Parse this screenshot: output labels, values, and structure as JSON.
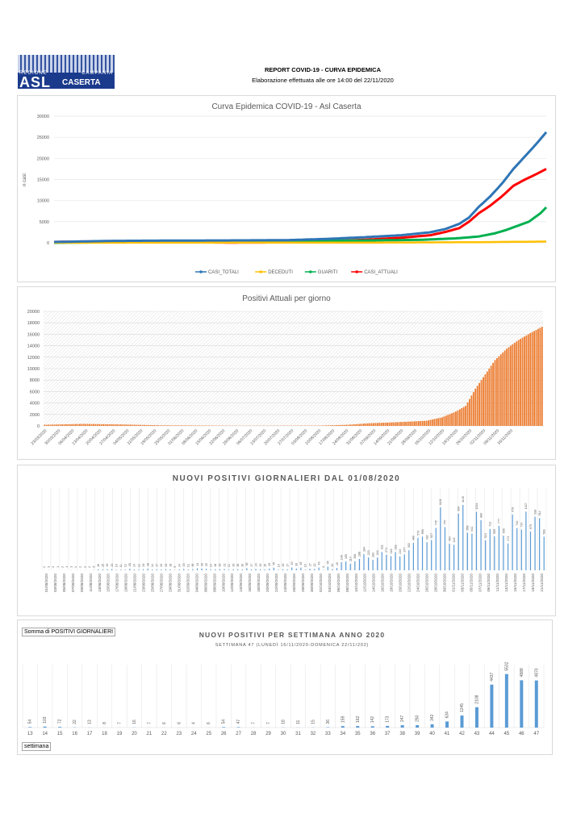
{
  "header": {
    "logo": {
      "region_left": "REGIONE",
      "region_right": "CAMPANIA",
      "asl": "ASL",
      "caserta": "CASERTA"
    },
    "title": "REPORT COVID-19 - CURVA EPIDEMICA",
    "subtitle": "Elaborazione effettuata alle ore 14:00 del 22/11/2020"
  },
  "chart_data": [
    {
      "type": "line",
      "title": "Curva Epidemica COVID-19 - Asl Caserta",
      "xlabel": "",
      "ylabel": "n casi",
      "ylim": [
        0,
        30000
      ],
      "yticks": [
        0,
        5000,
        10000,
        15000,
        20000,
        25000,
        30000
      ],
      "grid": true,
      "legend": "bottom",
      "x_range": [
        "23/03/2020",
        "22/11/2020"
      ],
      "series": [
        {
          "name": "CASI_TOTALI",
          "color": "#2e75b6",
          "points": [
            [
              0,
              200
            ],
            [
              30,
              450
            ],
            [
              60,
              520
            ],
            [
              90,
              560
            ],
            [
              120,
              620
            ],
            [
              140,
              900
            ],
            [
              160,
              1300
            ],
            [
              180,
              1800
            ],
            [
              195,
              2500
            ],
            [
              203,
              3300
            ],
            [
              210,
              4500
            ],
            [
              215,
              6000
            ],
            [
              220,
              8500
            ],
            [
              226,
              11000
            ],
            [
              232,
              14000
            ],
            [
              238,
              17500
            ],
            [
              244,
              20500
            ],
            [
              250,
              23500
            ],
            [
              255,
              26200
            ]
          ]
        },
        {
          "name": "DECEDUTI",
          "color": "#ffc000",
          "points": [
            [
              0,
              10
            ],
            [
              60,
              40
            ],
            [
              120,
              50
            ],
            [
              180,
              70
            ],
            [
              220,
              150
            ],
            [
              255,
              300
            ]
          ]
        },
        {
          "name": "GUARITI",
          "color": "#00b050",
          "points": [
            [
              0,
              0
            ],
            [
              60,
              300
            ],
            [
              120,
              450
            ],
            [
              160,
              550
            ],
            [
              190,
              700
            ],
            [
              210,
              1100
            ],
            [
              220,
              1500
            ],
            [
              228,
              2200
            ],
            [
              234,
              3000
            ],
            [
              240,
              4000
            ],
            [
              246,
              5000
            ],
            [
              252,
              7000
            ],
            [
              255,
              8400
            ]
          ]
        },
        {
          "name": "CASI_ATTUALI",
          "color": "#ff0000",
          "points": [
            [
              0,
              200
            ],
            [
              30,
              380
            ],
            [
              60,
              180
            ],
            [
              90,
              60
            ],
            [
              120,
              100
            ],
            [
              140,
              350
            ],
            [
              160,
              700
            ],
            [
              180,
              1200
            ],
            [
              195,
              1800
            ],
            [
              203,
              2600
            ],
            [
              210,
              3500
            ],
            [
              215,
              5000
            ],
            [
              220,
              7000
            ],
            [
              226,
              8800
            ],
            [
              232,
              11000
            ],
            [
              238,
              13500
            ],
            [
              244,
              15000
            ],
            [
              250,
              16300
            ],
            [
              255,
              17500
            ]
          ]
        }
      ]
    },
    {
      "type": "bar",
      "title": "Positivi Attuali per giorno",
      "ylim": [
        0,
        20000
      ],
      "yticks": [
        0,
        2000,
        4000,
        6000,
        8000,
        10000,
        12000,
        14000,
        16000,
        18000,
        20000
      ],
      "color": "#ed7d31",
      "grid": true,
      "tick_labels": [
        "23/03/2020",
        "30/03/2020",
        "06/04/2020",
        "13/04/2020",
        "20/04/2020",
        "27/04/2020",
        "04/05/2020",
        "11/05/2020",
        "18/05/2020",
        "25/05/2020",
        "01/06/2020",
        "08/06/2020",
        "15/06/2020",
        "22/06/2020",
        "29/06/2020",
        "06/07/2020",
        "13/07/2020",
        "20/07/2020",
        "27/07/2020",
        "03/08/2020",
        "10/08/2020",
        "17/08/2020",
        "24/08/2020",
        "31/08/2020",
        "07/09/2020",
        "14/09/2020",
        "21/09/2020",
        "28/09/2020",
        "05/10/2020",
        "12/10/2020",
        "19/10/2020",
        "26/10/2020",
        "02/11/2020",
        "09/11/2020",
        "16/11/2020"
      ],
      "curve": [
        [
          0,
          200
        ],
        [
          20,
          350
        ],
        [
          40,
          250
        ],
        [
          60,
          100
        ],
        [
          100,
          30
        ],
        [
          140,
          50
        ],
        [
          155,
          200
        ],
        [
          165,
          450
        ],
        [
          180,
          650
        ],
        [
          195,
          900
        ],
        [
          203,
          1500
        ],
        [
          210,
          2500
        ],
        [
          215,
          3500
        ],
        [
          220,
          6500
        ],
        [
          225,
          9000
        ],
        [
          230,
          11500
        ],
        [
          236,
          13500
        ],
        [
          242,
          15000
        ],
        [
          248,
          16200
        ],
        [
          255,
          17500
        ]
      ]
    },
    {
      "type": "bar",
      "title": "NUOVI POSITIVI GIORNALIERI DAL 01/08/2020",
      "color": "#5b9bd5",
      "grid": true,
      "categories": [
        "01/08/2020",
        "03/08/2020",
        "05/08/2020",
        "07/08/2020",
        "09/08/2020",
        "11/08/2020",
        "13/08/2020",
        "15/08/2020",
        "17/08/2020",
        "19/08/2020",
        "21/08/2020",
        "23/08/2020",
        "25/08/2020",
        "27/08/2020",
        "29/08/2020",
        "31/08/2020",
        "02/09/2020",
        "04/09/2020",
        "06/09/2020",
        "08/09/2020",
        "10/09/2020",
        "12/09/2020",
        "14/09/2020",
        "16/09/2020",
        "18/09/2020",
        "20/09/2020",
        "22/09/2020",
        "24/09/2020",
        "26/09/2020",
        "28/09/2020",
        "30/09/2020",
        "02/10/2020",
        "04/10/2020",
        "06/10/2020",
        "08/10/2020",
        "10/10/2020",
        "12/10/2020",
        "14/10/2020",
        "16/10/2020",
        "18/10/2020",
        "20/10/2020",
        "22/10/2020",
        "24/10/2020",
        "26/10/2020",
        "28/10/2020",
        "30/10/2020",
        "01/11/2020",
        "03/11/2020",
        "05/11/2020",
        "07/11/2020",
        "09/11/2020",
        "11/11/2020",
        "13/11/2020",
        "15/11/2020",
        "17/11/2020",
        "19/11/2020",
        "21/11/2020"
      ],
      "values": [
        1,
        3,
        2,
        1,
        2,
        1,
        3,
        1,
        2,
        2,
        2,
        5,
        16,
        15,
        19,
        20,
        10,
        11,
        12,
        25,
        14,
        12,
        19,
        28,
        14,
        17,
        15,
        20,
        18,
        5,
        14,
        23,
        12,
        18,
        34,
        30,
        25,
        13,
        18,
        19,
        21,
        12,
        19,
        18,
        16,
        36,
        17,
        24,
        19,
        16,
        29,
        45,
        10,
        19,
        17,
        49,
        30,
        48,
        10,
        27,
        22,
        49,
        6,
        65,
        20,
        40,
        140,
        155,
        114,
        158,
        198,
        284,
        223,
        183,
        222,
        321,
        271,
        248,
        318,
        243,
        277,
        352,
        480,
        570,
        590,
        492,
        527,
        745,
        1101,
        757,
        464,
        445,
        994,
        1145,
        658,
        642,
        1024,
        880,
        524,
        723,
        595,
        777,
        606,
        471,
        978,
        740,
        714,
        1027,
        679,
        938,
        914,
        589
      ]
    },
    {
      "type": "bar",
      "title": "NUOVI POSITIVI PER SETTIMANA ANNO 2020",
      "subtitle": "SETTIMANA 47 (LUNEDÌ 16/11/2020-DOMENICA 22/11/202)",
      "legend_field": "Somma di POSITIVI GIORNALIERI",
      "axis_field": "settimana",
      "color": "#5b9bd5",
      "grid": true,
      "categories": [
        "13",
        "14",
        "15",
        "16",
        "17",
        "18",
        "19",
        "20",
        "21",
        "22",
        "23",
        "24",
        "25",
        "26",
        "27",
        "28",
        "29",
        "30",
        "31",
        "32",
        "33",
        "34",
        "35",
        "36",
        "37",
        "38",
        "39",
        "40",
        "41",
        "42",
        "43",
        "44",
        "45",
        "46",
        "47"
      ],
      "values": [
        54,
        103,
        72,
        22,
        13,
        8,
        7,
        16,
        7,
        6,
        6,
        4,
        6,
        54,
        47,
        7,
        7,
        18,
        11,
        15,
        36,
        159,
        162,
        142,
        173,
        247,
        250,
        342,
        634,
        1245,
        2108,
        4437,
        5532,
        4888,
        4870
      ]
    }
  ]
}
